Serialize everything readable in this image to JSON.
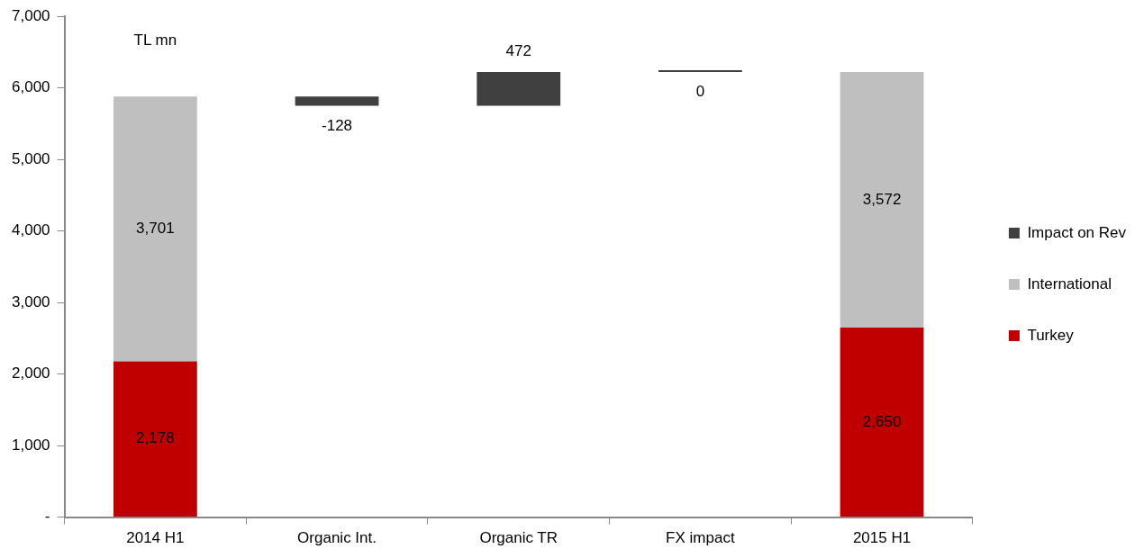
{
  "chart_data": {
    "type": "bar",
    "stacked": true,
    "categories": [
      "2014 H1",
      "Organic Int.",
      "Organic TR",
      "FX impact",
      "2015 H1"
    ],
    "series": [
      {
        "name": "Turkey",
        "color": "#c00000",
        "values": [
          2178,
          null,
          null,
          null,
          2650
        ],
        "value_labels": [
          "2,178",
          null,
          null,
          null,
          "2,650"
        ]
      },
      {
        "name": "International",
        "color": "#bfbfbf",
        "values": [
          3701,
          null,
          null,
          null,
          3572
        ],
        "value_labels": [
          "3,701",
          null,
          null,
          null,
          "3,572"
        ]
      },
      {
        "name": "Impact on Rev",
        "color": "#404040",
        "values": [
          null,
          -128,
          472,
          0,
          null
        ],
        "base": [
          null,
          5879,
          5751,
          6223,
          null
        ],
        "value_labels": [
          null,
          "-128",
          "472",
          "0",
          null
        ]
      }
    ],
    "ylim": [
      0,
      7000
    ],
    "yticks": [
      {
        "value": 0,
        "label": "-"
      },
      {
        "value": 1000,
        "label": "1,000"
      },
      {
        "value": 2000,
        "label": "2,000"
      },
      {
        "value": 3000,
        "label": "3,000"
      },
      {
        "value": 4000,
        "label": "4,000"
      },
      {
        "value": 5000,
        "label": "5,000"
      },
      {
        "value": 6000,
        "label": "6,000"
      },
      {
        "value": 7000,
        "label": "7,000"
      }
    ],
    "annotations": [
      "TL mn"
    ],
    "grid": false,
    "legend": "right"
  }
}
